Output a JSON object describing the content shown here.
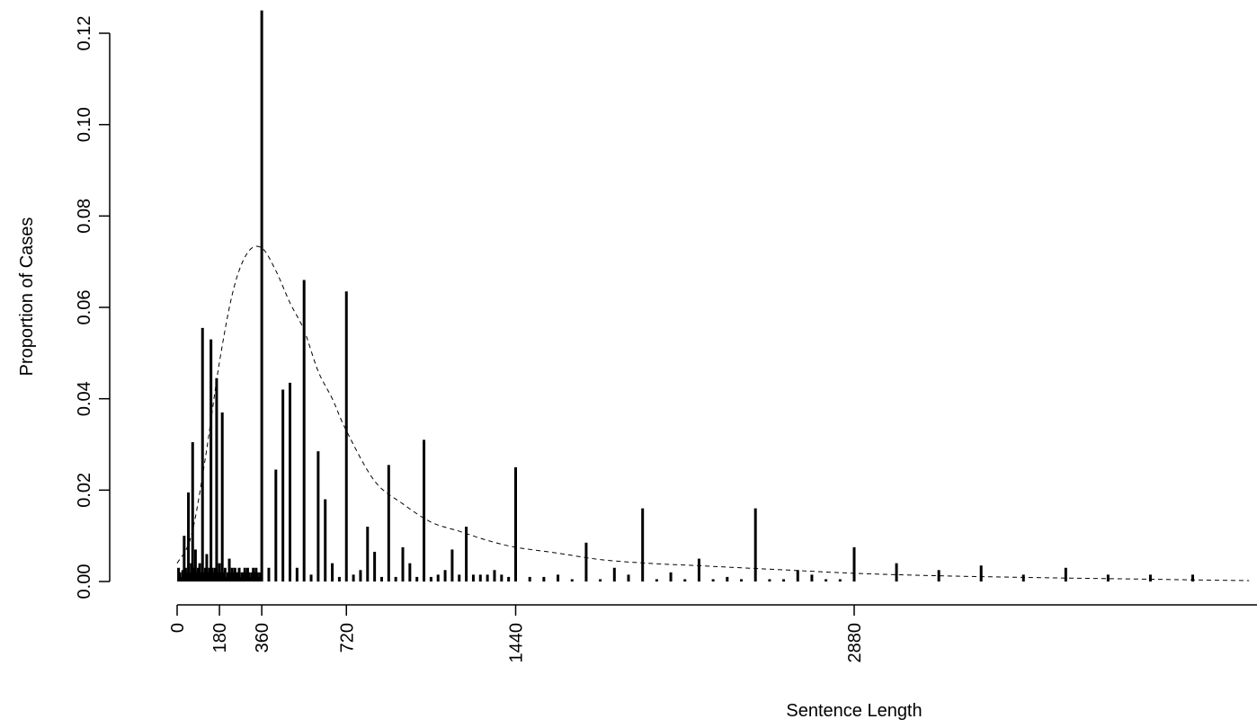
{
  "chart_data": {
    "type": "bar",
    "xlabel": "Sentence Length",
    "ylabel": "Proportion of Cases",
    "xlim": [
      0,
      4560
    ],
    "ylim": [
      0,
      0.125
    ],
    "x_ticks": [
      0,
      180,
      360,
      720,
      1440,
      2880
    ],
    "y_ticks": [
      0.0,
      0.02,
      0.04,
      0.06,
      0.08,
      0.1,
      0.12
    ],
    "y_tick_labels": [
      "0.00",
      "0.02",
      "0.04",
      "0.06",
      "0.08",
      "0.10",
      "0.12"
    ],
    "grid": false,
    "colors": {
      "bars": "#000000",
      "curve": "#000000",
      "background": "#ffffff"
    },
    "series": [
      {
        "type": "bar",
        "x": [
          6,
          12,
          18,
          24,
          30,
          36,
          42,
          48,
          54,
          60,
          66,
          72,
          78,
          84,
          90,
          96,
          102,
          108,
          114,
          120,
          126,
          132,
          138,
          144,
          150,
          156,
          162,
          168,
          174,
          180,
          186,
          192,
          198,
          204,
          210,
          216,
          222,
          228,
          234,
          240,
          246,
          252,
          258,
          264,
          270,
          276,
          282,
          288,
          294,
          300,
          306,
          312,
          318,
          324,
          330,
          336,
          342,
          348,
          354,
          360,
          390,
          420,
          450,
          480,
          510,
          540,
          570,
          600,
          630,
          660,
          690,
          720,
          750,
          780,
          810,
          840,
          870,
          900,
          930,
          960,
          990,
          1020,
          1050,
          1080,
          1110,
          1140,
          1170,
          1200,
          1230,
          1260,
          1290,
          1320,
          1350,
          1380,
          1410,
          1440,
          1500,
          1560,
          1620,
          1680,
          1740,
          1800,
          1860,
          1920,
          1980,
          2040,
          2100,
          2160,
          2220,
          2280,
          2340,
          2400,
          2460,
          2520,
          2580,
          2640,
          2700,
          2760,
          2820,
          2880,
          3060,
          3240,
          3420,
          3600,
          3780,
          3960,
          4140,
          4320
        ],
        "values": [
          0.003,
          0.002,
          0.001,
          0.0025,
          0.01,
          0.003,
          0.002,
          0.0195,
          0.002,
          0.004,
          0.0305,
          0.003,
          0.007,
          0.002,
          0.003,
          0.004,
          0.002,
          0.0555,
          0.002,
          0.003,
          0.006,
          0.002,
          0.003,
          0.053,
          0.003,
          0.002,
          0.003,
          0.0445,
          0.002,
          0.004,
          0.002,
          0.037,
          0.002,
          0.003,
          0.001,
          0.002,
          0.005,
          0.002,
          0.003,
          0.002,
          0.003,
          0.002,
          0.002,
          0.003,
          0.001,
          0.002,
          0.002,
          0.003,
          0.002,
          0.003,
          0.002,
          0.001,
          0.002,
          0.003,
          0.002,
          0.003,
          0.002,
          0.001,
          0.002,
          0.125,
          0.003,
          0.0245,
          0.042,
          0.0435,
          0.003,
          0.066,
          0.0015,
          0.0285,
          0.018,
          0.004,
          0.001,
          0.0635,
          0.0015,
          0.0025,
          0.012,
          0.0065,
          0.001,
          0.0255,
          0.001,
          0.0075,
          0.004,
          0.001,
          0.031,
          0.001,
          0.0015,
          0.0025,
          0.007,
          0.0015,
          0.012,
          0.0015,
          0.0015,
          0.0015,
          0.0025,
          0.0015,
          0.001,
          0.025,
          0.001,
          0.001,
          0.0015,
          0.0005,
          0.0085,
          0.0005,
          0.003,
          0.0015,
          0.016,
          0.0005,
          0.002,
          0.0005,
          0.005,
          0.0005,
          0.001,
          0.0005,
          0.016,
          0.0005,
          0.0005,
          0.0025,
          0.0015,
          0.0005,
          0.0005,
          0.0075,
          0.004,
          0.0025,
          0.0035,
          0.0015,
          0.003,
          0.0015,
          0.0015,
          0.0015
        ]
      },
      {
        "type": "line",
        "style": "dashed",
        "x": [
          0,
          60,
          120,
          180,
          240,
          300,
          360,
          420,
          480,
          540,
          600,
          660,
          720,
          840,
          960,
          1080,
          1200,
          1320,
          1440,
          1620,
          1800,
          2000,
          2200,
          2400,
          2600,
          2880,
          3200,
          3600,
          4000,
          4400,
          4560
        ],
        "values": [
          0.004,
          0.01,
          0.027,
          0.048,
          0.064,
          0.072,
          0.073,
          0.068,
          0.061,
          0.055,
          0.046,
          0.04,
          0.033,
          0.022,
          0.017,
          0.013,
          0.011,
          0.009,
          0.0075,
          0.0062,
          0.0048,
          0.004,
          0.0035,
          0.003,
          0.0025,
          0.0018,
          0.0013,
          0.0009,
          0.0006,
          0.0003,
          0.0002
        ]
      }
    ]
  }
}
